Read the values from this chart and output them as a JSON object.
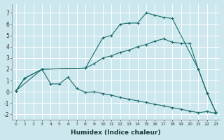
{
  "xlabel": "Humidex (Indice chaleur)",
  "bg_color": "#cce8ee",
  "grid_color": "#ffffff",
  "line_color": "#1a6b6b",
  "xlim": [
    -0.5,
    23.5
  ],
  "ylim": [
    -2.5,
    7.8
  ],
  "xticks": [
    0,
    1,
    2,
    3,
    4,
    5,
    6,
    7,
    8,
    9,
    10,
    11,
    12,
    13,
    14,
    15,
    16,
    17,
    18,
    19,
    20,
    21,
    22,
    23
  ],
  "yticks": [
    -2,
    -1,
    0,
    1,
    2,
    3,
    4,
    5,
    6,
    7
  ],
  "series": [
    {
      "x": [
        0,
        1,
        3,
        8,
        10,
        11,
        12,
        13,
        14,
        15,
        16,
        17,
        18,
        21,
        22,
        23
      ],
      "y": [
        0.1,
        1.2,
        2.0,
        2.1,
        4.8,
        5.0,
        6.0,
        6.1,
        6.1,
        7.0,
        6.8,
        6.6,
        6.5,
        2.0,
        -0.1,
        -1.8
      ]
    },
    {
      "x": [
        0,
        3,
        8,
        9,
        10,
        11,
        12,
        13,
        14,
        15,
        16,
        17,
        18,
        19,
        20,
        21,
        22,
        23
      ],
      "y": [
        0.1,
        2.0,
        2.1,
        2.5,
        3.0,
        3.2,
        3.5,
        3.7,
        4.0,
        4.2,
        4.5,
        4.7,
        4.4,
        4.3,
        4.3,
        2.0,
        -0.1,
        -1.8
      ]
    },
    {
      "x": [
        0,
        1,
        3,
        4,
        5,
        6,
        7,
        8,
        9,
        10,
        11,
        12,
        13,
        14,
        15,
        16,
        17,
        18,
        19,
        20,
        21,
        22,
        23
      ],
      "y": [
        0.1,
        1.2,
        2.0,
        0.7,
        0.7,
        1.3,
        0.3,
        -0.05,
        0.0,
        -0.15,
        -0.3,
        -0.5,
        -0.65,
        -0.8,
        -0.95,
        -1.1,
        -1.25,
        -1.4,
        -1.55,
        -1.7,
        -1.85,
        -1.75,
        -1.9
      ]
    }
  ]
}
